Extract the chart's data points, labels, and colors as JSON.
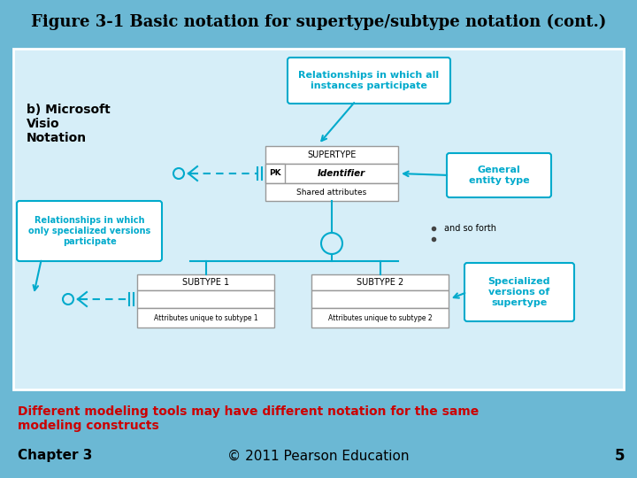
{
  "title": "Figure 3-1 Basic notation for supertype/subtype notation (cont.)",
  "title_fontsize": 13,
  "slide_bg": "#6BB8D4",
  "inner_bg": "#D6EEF8",
  "label_b": "b) Microsoft\nVisio\nNotation",
  "supertype_label": "SUPERTYPE",
  "subtype1_label": "SUBTYPE 1",
  "subtype2_label": "SUBTYPE 2",
  "identifier_label": "Identifier",
  "pk_label": "PK",
  "shared_label": "Shared attributes",
  "attr1_label": "Attributes unique to subtype 1",
  "attr2_label": "Attributes unique to subtype 2",
  "callout1_text": "Relationships in which all\ninstances participate",
  "callout2_text": "Relationships in which\nonly specialized versions\nparticipate",
  "callout3_text": "General\nentity type",
  "callout4_text": "Specialized\nversions of\nsupertype",
  "and_so_forth": "and so forth",
  "bottom_text": "Different modeling tools may have different notation for the same\nmodeling constructs",
  "chapter_text": "Chapter 3",
  "copyright_text": "© 2011 Pearson Education",
  "page_num": "5",
  "callout_bg": "white",
  "callout_text_color": "#00AACC",
  "bottom_text_color": "#CC0000",
  "line_color": "#00AACC",
  "box_border_color": "#999999"
}
